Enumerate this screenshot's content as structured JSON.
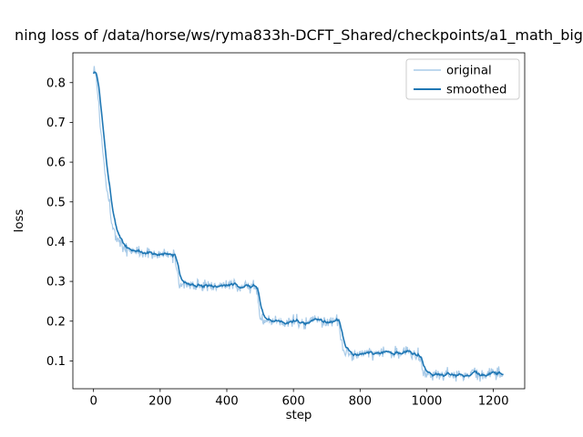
{
  "colors": {
    "background": "#ffffff",
    "spine": "#000000",
    "legend_edge": "#cccccc"
  },
  "chart_data": {
    "type": "line",
    "title": "ning loss of /data/horse/ws/ryma833h-DCFT_Shared/checkpoints/a1_math_big",
    "xlabel": "step",
    "ylabel": "loss",
    "xlim": [
      -62,
      1294
    ],
    "ylim": [
      0.03,
      0.875
    ],
    "x_ticks": [
      0,
      200,
      400,
      600,
      800,
      1000,
      1200
    ],
    "y_ticks": [
      0.1,
      0.2,
      0.3,
      0.4,
      0.5,
      0.6,
      0.7,
      0.8
    ],
    "grid": false,
    "legend": {
      "position": "upper right",
      "entries": [
        "original",
        "smoothed"
      ]
    },
    "series": [
      {
        "name": "original",
        "color": "#a9cbe8",
        "width": 1.2
      },
      {
        "name": "smoothed",
        "color": "#1f77b4",
        "width": 1.6
      }
    ],
    "keypoints": [
      [
        0,
        0.835
      ],
      [
        4,
        0.83
      ],
      [
        8,
        0.812
      ],
      [
        12,
        0.778
      ],
      [
        16,
        0.74
      ],
      [
        20,
        0.7
      ],
      [
        25,
        0.653
      ],
      [
        30,
        0.612
      ],
      [
        35,
        0.573
      ],
      [
        40,
        0.54
      ],
      [
        45,
        0.508
      ],
      [
        50,
        0.48
      ],
      [
        55,
        0.456
      ],
      [
        60,
        0.436
      ],
      [
        65,
        0.421
      ],
      [
        70,
        0.409
      ],
      [
        75,
        0.4
      ],
      [
        80,
        0.393
      ],
      [
        90,
        0.385
      ],
      [
        100,
        0.381
      ],
      [
        115,
        0.378
      ],
      [
        130,
        0.375
      ],
      [
        145,
        0.374
      ],
      [
        160,
        0.372
      ],
      [
        180,
        0.37
      ],
      [
        200,
        0.368
      ],
      [
        215,
        0.366
      ],
      [
        230,
        0.364
      ],
      [
        243,
        0.362
      ],
      [
        247,
        0.352
      ],
      [
        251,
        0.322
      ],
      [
        255,
        0.303
      ],
      [
        260,
        0.296
      ],
      [
        270,
        0.293
      ],
      [
        285,
        0.291
      ],
      [
        300,
        0.291
      ],
      [
        320,
        0.29
      ],
      [
        340,
        0.291
      ],
      [
        360,
        0.29
      ],
      [
        380,
        0.29
      ],
      [
        400,
        0.289
      ],
      [
        420,
        0.289
      ],
      [
        440,
        0.289
      ],
      [
        460,
        0.288
      ],
      [
        475,
        0.288
      ],
      [
        488,
        0.287
      ],
      [
        492,
        0.272
      ],
      [
        496,
        0.235
      ],
      [
        500,
        0.21
      ],
      [
        505,
        0.202
      ],
      [
        512,
        0.2
      ],
      [
        525,
        0.199
      ],
      [
        540,
        0.198
      ],
      [
        560,
        0.199
      ],
      [
        580,
        0.199
      ],
      [
        600,
        0.2
      ],
      [
        620,
        0.199
      ],
      [
        640,
        0.198
      ],
      [
        660,
        0.199
      ],
      [
        680,
        0.199
      ],
      [
        700,
        0.2
      ],
      [
        715,
        0.2
      ],
      [
        730,
        0.2
      ],
      [
        736,
        0.196
      ],
      [
        740,
        0.168
      ],
      [
        744,
        0.138
      ],
      [
        748,
        0.126
      ],
      [
        754,
        0.121
      ],
      [
        762,
        0.119
      ],
      [
        775,
        0.118
      ],
      [
        790,
        0.118
      ],
      [
        810,
        0.118
      ],
      [
        830,
        0.119
      ],
      [
        850,
        0.12
      ],
      [
        870,
        0.12
      ],
      [
        890,
        0.121
      ],
      [
        910,
        0.121
      ],
      [
        930,
        0.122
      ],
      [
        950,
        0.121
      ],
      [
        965,
        0.12
      ],
      [
        978,
        0.119
      ],
      [
        982,
        0.112
      ],
      [
        986,
        0.09
      ],
      [
        990,
        0.074
      ],
      [
        994,
        0.069
      ],
      [
        1000,
        0.067
      ],
      [
        1015,
        0.066
      ],
      [
        1030,
        0.066
      ],
      [
        1050,
        0.067
      ],
      [
        1070,
        0.066
      ],
      [
        1090,
        0.066
      ],
      [
        1110,
        0.065
      ],
      [
        1130,
        0.066
      ],
      [
        1150,
        0.066
      ],
      [
        1170,
        0.066
      ],
      [
        1190,
        0.066
      ],
      [
        1210,
        0.067
      ],
      [
        1230,
        0.067
      ]
    ],
    "noise": {
      "amplitude": 0.02,
      "seed": 1337,
      "interval": 2
    },
    "ema_alpha": 0.2
  }
}
